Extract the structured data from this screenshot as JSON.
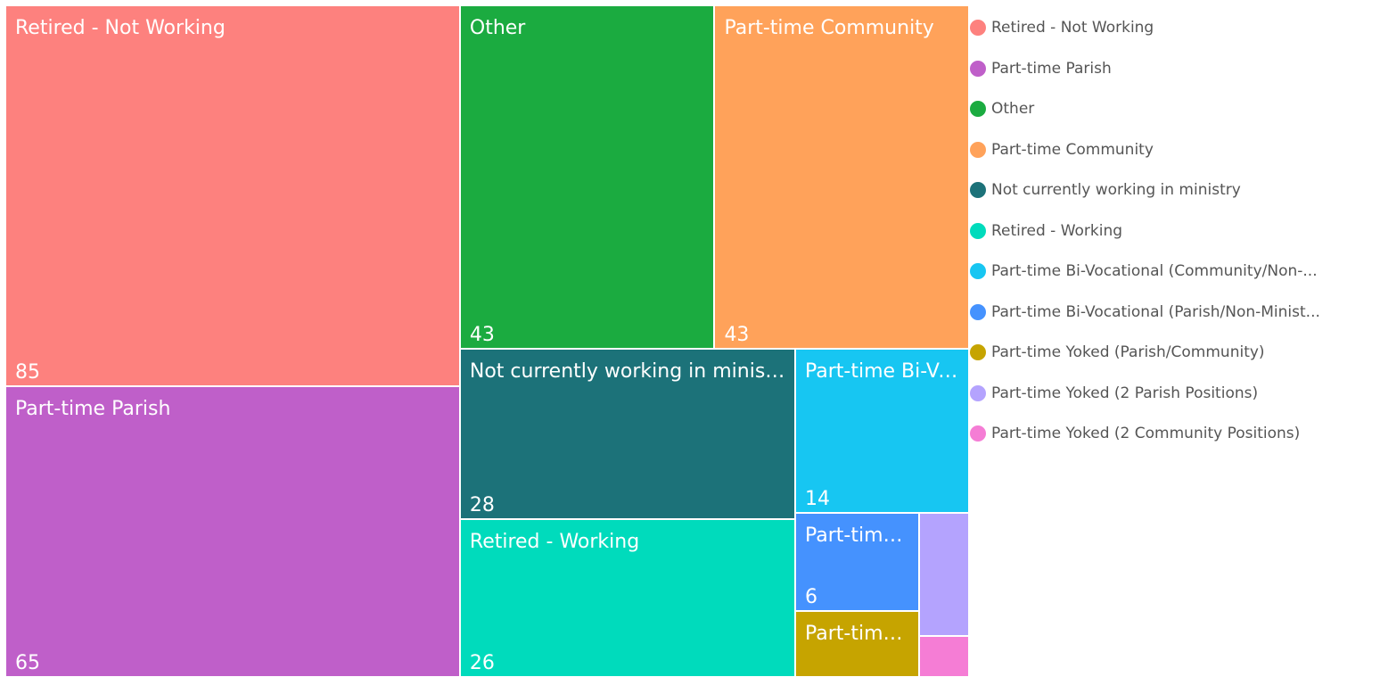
{
  "chart_data": {
    "type": "treemap",
    "categories": [
      "Retired - Not Working",
      "Part-time Parish",
      "Other",
      "Part-time Community",
      "Not currently working in ministry",
      "Retired - Working",
      "Part-time Bi-Vocational (Community/Non-...",
      "Part-time Bi-Vocational (Parish/Non-Minist...",
      "Part-time Yoked (Parish/Community)",
      "Part-time Yoked (2 Parish Positions)",
      "Part-time Yoked (2 Community Positions)"
    ],
    "values": [
      85,
      65,
      43,
      43,
      28,
      26,
      14,
      6,
      4,
      3,
      1
    ],
    "colors": [
      "#FD817E",
      "#BF5FC9",
      "#1BAB40",
      "#FFA25A",
      "#1C7279",
      "#00DBBC",
      "#17C6F2",
      "#4592FE",
      "#C6A400",
      "#B4A3FE",
      "#F57DD5"
    ],
    "legend": "right"
  }
}
